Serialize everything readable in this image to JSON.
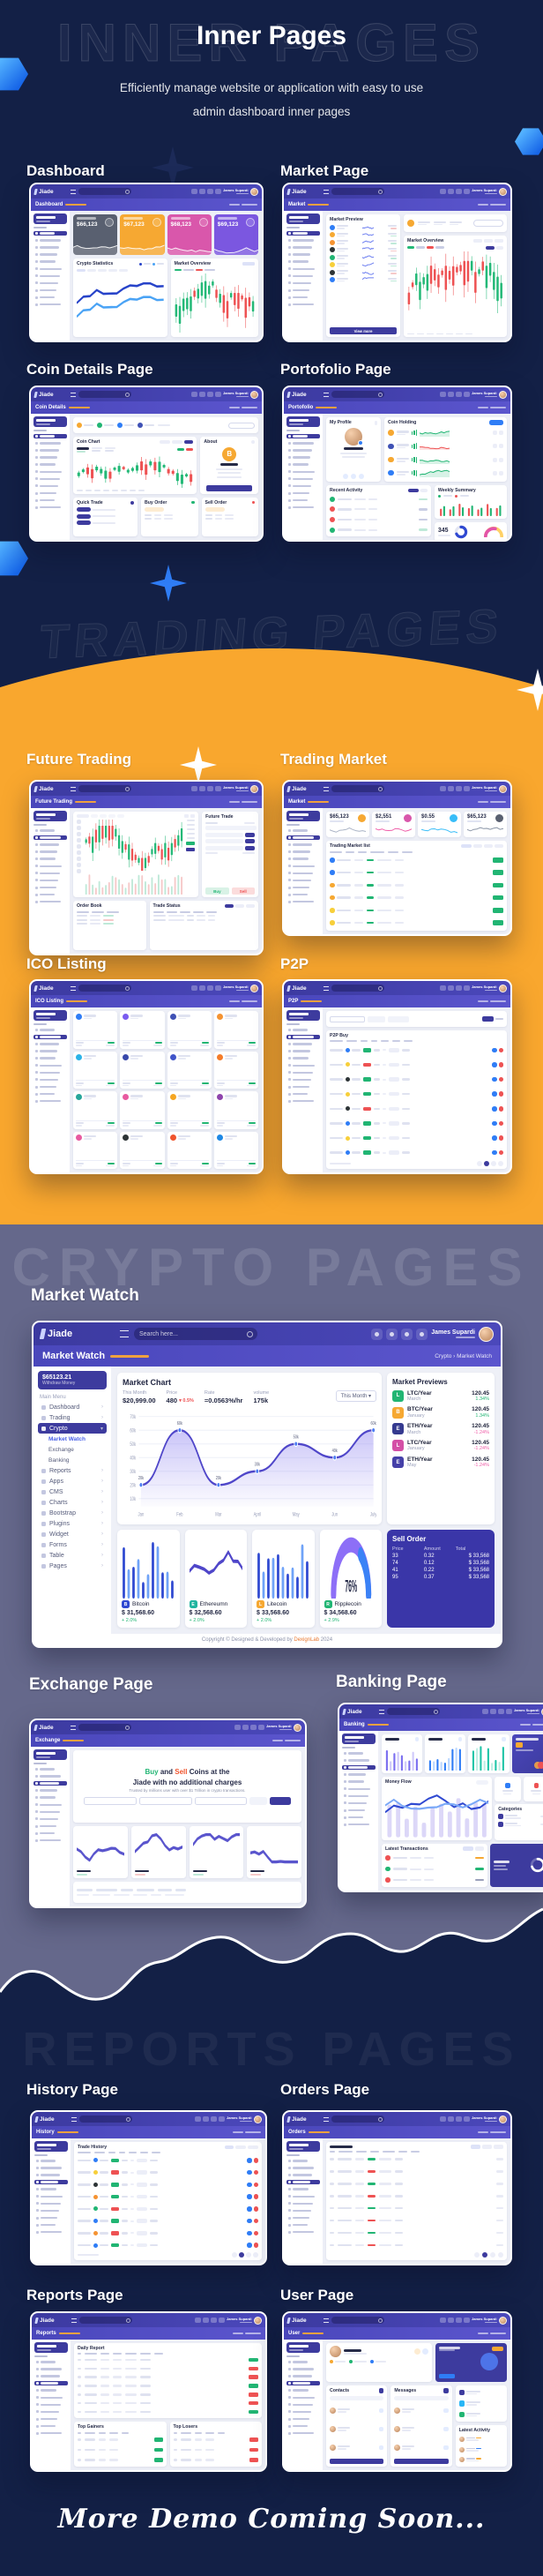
{
  "colors": {
    "navy": "#132046",
    "orange": "#f9a72e",
    "slate": "#65688b",
    "indigo": "#3d3b9e",
    "accent_blue": "#2f7df6",
    "green": "#21b573",
    "red": "#ea4d4d"
  },
  "hero": {
    "watermark": "INNER PAGES",
    "title": "Inner Pages",
    "subtitle_line1": "Efficiently manage website or application with easy to use",
    "subtitle_line2": "admin dashboard inner pages"
  },
  "sections": {
    "inner": {
      "labels": [
        "Dashboard",
        "Market Page",
        "Coin Details Page",
        "Portofolio Page"
      ]
    },
    "trading": {
      "watermark": "TRADING PAGES",
      "labels": [
        "Future Trading",
        "Trading Market",
        "ICO Listing",
        "P2P"
      ]
    },
    "crypto": {
      "watermark": "CRYPTO PAGES",
      "labels": [
        "Market Watch",
        "Exchange Page",
        "Banking Page"
      ]
    },
    "reports": {
      "watermark": "REPORTS PAGES",
      "labels": [
        "History Page",
        "Orders Page",
        "Reports Page",
        "User Page"
      ]
    }
  },
  "app": {
    "logo": "Jiade",
    "user_name": "James Supardi",
    "search_placeholder": "Search here...",
    "balance": "$65123.21",
    "balance_sub": "Withdraw Money",
    "main_menu": "Main Menu",
    "view_more": "View more"
  },
  "shots": {
    "dashboard": {
      "title": "Dashboard",
      "stat_values": [
        "$66,123",
        "$67,123",
        "$68,123",
        "$69,123"
      ],
      "panel_left": "Crypto Statistics",
      "panel_right": "Market Overview"
    },
    "market": {
      "title": "Market",
      "list_title": "Market Preview",
      "chart_title": "Market Overview"
    },
    "coindetails": {
      "title": "Coin Details",
      "chart_title": "Coin Chart",
      "about_title": "About",
      "quick_trade": "Quick Trade",
      "buy_order": "Buy Order",
      "sell_order": "Sell Order"
    },
    "portfolio": {
      "title": "Portofolio",
      "profile_title": "My Profile",
      "holding_title": "Coin Holding",
      "activity_title": "Recent Activity",
      "summary_title": "Weekly Summary",
      "open_trades": "345"
    },
    "future": {
      "title": "Future Trading",
      "trade_title": "Future Trade",
      "order_book": "Order Book",
      "trade_status": "Trade Status",
      "buy_label": "Buy",
      "sell_label": "Sell"
    },
    "tradingmarket": {
      "title": "Market",
      "list_title": "Trading Market list",
      "stat_values": [
        "$65,123",
        "$2,551",
        "$0.55",
        "$65,123"
      ]
    },
    "ico": {
      "title": "ICO Listing"
    },
    "p2p": {
      "title": "P2P",
      "list_title": "P2P Buy"
    },
    "exchange": {
      "title": "Exchange",
      "headline_buy": "Buy",
      "headline_mid": " and ",
      "headline_sell": "Sell",
      "headline_tail": " Coins at the",
      "headline_line2": "Jiade with no additional charges",
      "subline": "Trusted by millions user with over $1 Trillion in crypto transactions."
    },
    "banking": {
      "title": "Banking",
      "money_flow": "Money Flow",
      "transactions": "Latest Transactions",
      "categories": "Categories"
    },
    "history": {
      "title": "History",
      "list_title": "Trade History"
    },
    "orders": {
      "title": "Orders"
    },
    "reports": {
      "title": "Reports",
      "daily_title": "Daily Report",
      "gainers_title": "Top Gainers",
      "losers_title": "Top Losers"
    },
    "user": {
      "title": "User",
      "contacts_title": "Contacts",
      "messages_title": "Messages",
      "activity_title": "Latest Activity"
    }
  },
  "market_watch": {
    "page_title": "Market Watch",
    "breadcrumb": "Crypto  ›  Market Watch",
    "sidebar": {
      "heading": "Main Menu",
      "items": [
        "Dashboard",
        "Trading",
        "Crypto",
        "Market Watch",
        "Exchange",
        "Banking",
        "Reports",
        "Apps",
        "CMS",
        "Charts",
        "Bootstrap",
        "Plugins",
        "Widget",
        "Forms",
        "Table",
        "Pages"
      ],
      "active_item": "Crypto",
      "active_sub": "Market Watch"
    },
    "chart_panel": {
      "title": "Market Chart",
      "stats": [
        {
          "label": "This Month",
          "value": "$20,999.00"
        },
        {
          "label": "Price",
          "value": "480",
          "delta": "0.5%"
        },
        {
          "label": "Rate",
          "value": "=0.0563%/hr"
        },
        {
          "label": "volume",
          "value": "175k"
        }
      ],
      "select": "This Month",
      "y_ticks": [
        "70k",
        "60k",
        "50k",
        "40k",
        "30k",
        "20k",
        "10k"
      ],
      "x_ticks": [
        "Jan",
        "Feb",
        "Mar",
        "April",
        "May",
        "Jun",
        "July"
      ],
      "point_labels": [
        "20k",
        "60k",
        "20k",
        "30k",
        "50k",
        "40k",
        "60k"
      ]
    },
    "previews": {
      "title": "Market Previews",
      "rows": [
        {
          "pair": "LTC/Year",
          "month": "March",
          "value": "120.45",
          "change": "1.34%"
        },
        {
          "pair": "BTC/Year",
          "month": "January",
          "value": "120.45",
          "change": "1.34%"
        },
        {
          "pair": "ETH/Year",
          "month": "March",
          "value": "120.45",
          "change": "-1.24%"
        },
        {
          "pair": "LTC/Year",
          "month": "January",
          "value": "120.45",
          "change": "-1.24%"
        },
        {
          "pair": "ETH/Year",
          "month": "May",
          "value": "120.45",
          "change": "-1.24%"
        }
      ]
    },
    "coins": [
      {
        "name": "Bitcoin",
        "price": "$ 31,568.60",
        "change": "+ 2.0%"
      },
      {
        "name": "Ethereumn",
        "price": "$ 32,568.60",
        "change": "+ 2.0%"
      },
      {
        "name": "Litecoin",
        "price": "$ 33,568.60",
        "change": "+ 2.0%"
      },
      {
        "name": "Ripplecoin",
        "price": "$ 34,568.60",
        "change": "+ 2.9%",
        "gauge": "76%"
      }
    ],
    "sell_order": {
      "title": "Sell Order",
      "columns": [
        "Price",
        "Amount",
        "Total"
      ],
      "rows": [
        [
          "33",
          "0.32",
          "$ 33,568"
        ],
        [
          "74",
          "0.12",
          "$ 33,568"
        ],
        [
          "41",
          "0.22",
          "$ 33,568"
        ],
        [
          "95",
          "0.37",
          "$ 33,568"
        ]
      ]
    },
    "footer_pre": "Copyright © Designed & Developed by ",
    "footer_brand": "DexignLab",
    "footer_year": " 2024"
  },
  "footer": {
    "coming_soon": "More Demo Coming Soon..."
  },
  "chart_data": {
    "type": "area",
    "title": "Market Chart",
    "x": [
      "Jan",
      "Feb",
      "Mar",
      "April",
      "May",
      "Jun",
      "July"
    ],
    "values_k": [
      20,
      60,
      20,
      30,
      50,
      40,
      60
    ],
    "ylim_k": [
      10,
      70
    ],
    "grid": true,
    "legend_position": "none"
  }
}
